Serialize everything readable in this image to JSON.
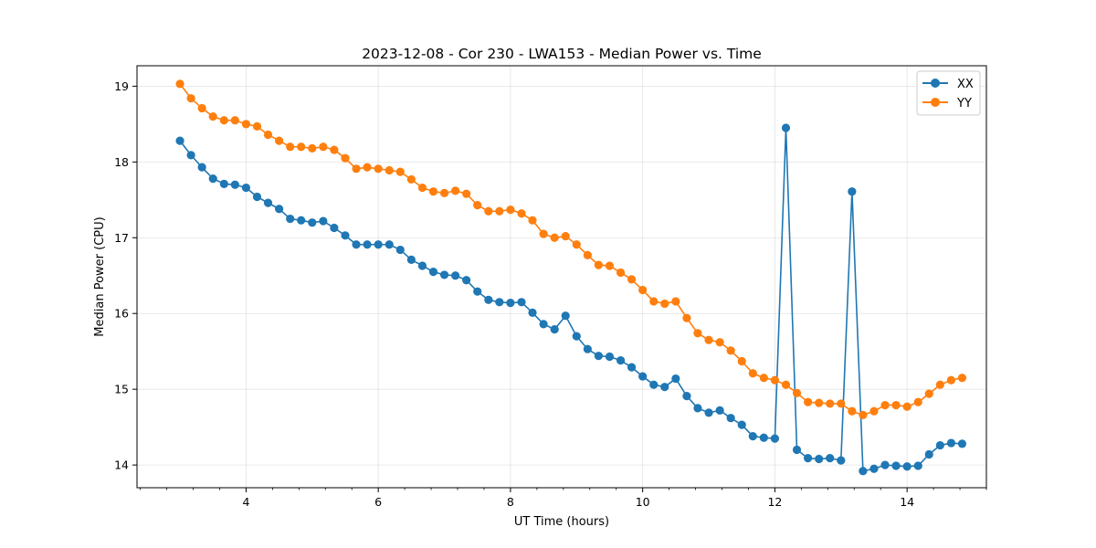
{
  "chart_data": {
    "type": "line",
    "title": "2023-12-08 - Cor 230 - LWA153 - Median Power vs. Time",
    "xlabel": "UT Time (hours)",
    "ylabel": "Median Power (CPU)",
    "xlim": [
      2.35,
      15.2
    ],
    "ylim": [
      13.7,
      19.27
    ],
    "xticks": [
      4,
      6,
      8,
      10,
      12,
      14
    ],
    "xtick_labels": [
      "4",
      "6",
      "8",
      "10",
      "12",
      "14"
    ],
    "xminor_step": 0.4,
    "yticks": [
      14,
      15,
      16,
      17,
      18,
      19
    ],
    "ytick_labels": [
      "14",
      "15",
      "16",
      "17",
      "18",
      "19"
    ],
    "grid": true,
    "legend_position": "top-right",
    "x": [
      3.0,
      3.167,
      3.333,
      3.5,
      3.667,
      3.833,
      4.0,
      4.167,
      4.333,
      4.5,
      4.667,
      4.833,
      5.0,
      5.167,
      5.333,
      5.5,
      5.667,
      5.833,
      6.0,
      6.167,
      6.333,
      6.5,
      6.667,
      6.833,
      7.0,
      7.167,
      7.333,
      7.5,
      7.667,
      7.833,
      8.0,
      8.167,
      8.333,
      8.5,
      8.667,
      8.833,
      9.0,
      9.167,
      9.333,
      9.5,
      9.667,
      9.833,
      10.0,
      10.167,
      10.333,
      10.5,
      10.667,
      10.833,
      11.0,
      11.167,
      11.333,
      11.5,
      11.667,
      11.833,
      12.0,
      12.167,
      12.333,
      12.5,
      12.667,
      12.833,
      13.0,
      13.167,
      13.333,
      13.5,
      13.667,
      13.833,
      14.0,
      14.167,
      14.333,
      14.5,
      14.667,
      14.833
    ],
    "series": [
      {
        "name": "XX",
        "color": "#1f77b4",
        "values": [
          18.28,
          18.09,
          17.93,
          17.78,
          17.71,
          17.7,
          17.66,
          17.54,
          17.46,
          17.38,
          17.25,
          17.23,
          17.2,
          17.22,
          17.13,
          17.03,
          16.91,
          16.91,
          16.91,
          16.91,
          16.84,
          16.71,
          16.63,
          16.55,
          16.51,
          16.5,
          16.44,
          16.29,
          16.18,
          16.15,
          16.14,
          16.15,
          16.01,
          15.86,
          15.79,
          15.97,
          15.7,
          15.53,
          15.44,
          15.43,
          15.38,
          15.29,
          15.17,
          15.06,
          15.03,
          15.14,
          14.91,
          14.75,
          14.69,
          14.72,
          14.62,
          14.53,
          14.38,
          14.36,
          14.35,
          18.45,
          14.2,
          14.09,
          14.08,
          14.09,
          14.06,
          17.61,
          13.92,
          13.95,
          14.0,
          13.99,
          13.98,
          13.99,
          14.14,
          14.26,
          14.29,
          14.28
        ]
      },
      {
        "name": "YY",
        "color": "#ff7f0e",
        "values": [
          19.03,
          18.84,
          18.71,
          18.6,
          18.55,
          18.55,
          18.5,
          18.47,
          18.36,
          18.28,
          18.2,
          18.2,
          18.18,
          18.2,
          18.16,
          18.05,
          17.91,
          17.93,
          17.91,
          17.89,
          17.87,
          17.77,
          17.66,
          17.61,
          17.59,
          17.62,
          17.58,
          17.43,
          17.35,
          17.35,
          17.37,
          17.32,
          17.23,
          17.05,
          17.0,
          17.02,
          16.91,
          16.77,
          16.64,
          16.63,
          16.54,
          16.45,
          16.31,
          16.16,
          16.13,
          16.16,
          15.94,
          15.74,
          15.65,
          15.62,
          15.51,
          15.37,
          15.21,
          15.15,
          15.12,
          15.06,
          14.95,
          14.83,
          14.82,
          14.81,
          14.81,
          14.71,
          14.66,
          14.71,
          14.79,
          14.79,
          14.77,
          14.83,
          14.94,
          15.06,
          15.12,
          15.15
        ]
      }
    ]
  }
}
